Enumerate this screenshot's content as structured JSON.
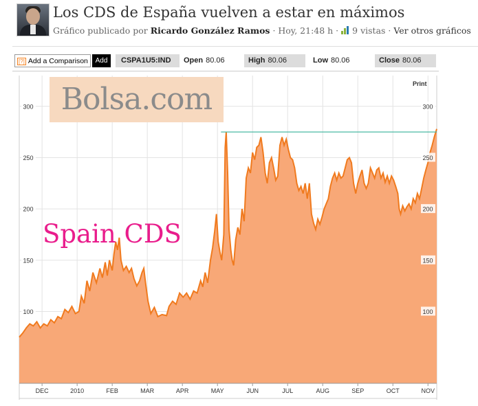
{
  "header": {
    "title": "Los CDS de España vuelven a estar en máximos",
    "meta_prefix": "Gráfico publicado por",
    "author": "Ricardo González Ramos",
    "time": "· Hoy, 21:48 h ·",
    "views": "9 vistas",
    "dot": "·",
    "other_charts": "Ver otros gráficos"
  },
  "toolbar": {
    "compare_icon": "[?]",
    "compare_label": "Add a Comparison",
    "add_label": "Add",
    "ticker": "CSPA1U5:IND",
    "open_label": "Open",
    "open_value": "80.06",
    "high_label": "High",
    "high_value": "80.06",
    "low_label": "Low",
    "low_value": "80.06",
    "close_label": "Close",
    "close_value": "80.06",
    "print_label": "Print"
  },
  "watermark": "Bolsa.com",
  "overlay_label": "Spain CDS",
  "colors": {
    "line": "#f07a1e",
    "fill": "#f8a877",
    "resistance": "#48b9a3",
    "grid": "#e3e3e3",
    "overlay": "#e91d8c"
  },
  "chart_data": {
    "type": "area",
    "title": "",
    "xlabel": "",
    "ylabel": "",
    "ylim": [
      30,
      330
    ],
    "yticks": [
      100,
      150,
      200,
      250,
      300
    ],
    "xticks": [
      {
        "label": "DEC",
        "x": 1.0
      },
      {
        "label": "2010",
        "x": 2.0
      },
      {
        "label": "FEB",
        "x": 3.0
      },
      {
        "label": "MAR",
        "x": 4.0
      },
      {
        "label": "APR",
        "x": 5.0
      },
      {
        "label": "MAY",
        "x": 6.0
      },
      {
        "label": "JUN",
        "x": 7.0
      },
      {
        "label": "JUL",
        "x": 8.0
      },
      {
        "label": "AUG",
        "x": 9.0
      },
      {
        "label": "SEP",
        "x": 10.0
      },
      {
        "label": "OCT",
        "x": 11.0
      },
      {
        "label": "NOV",
        "x": 12.0
      }
    ],
    "xlim": [
      0.35,
      12.25
    ],
    "grid": true,
    "resistance_level": 275,
    "resistance_x": [
      6.1,
      12.25
    ],
    "series": [
      {
        "points": [
          [
            0.35,
            75
          ],
          [
            0.45,
            79
          ],
          [
            0.55,
            84
          ],
          [
            0.65,
            88
          ],
          [
            0.75,
            86
          ],
          [
            0.85,
            90
          ],
          [
            0.95,
            84
          ],
          [
            1.05,
            88
          ],
          [
            1.15,
            86
          ],
          [
            1.25,
            92
          ],
          [
            1.35,
            89
          ],
          [
            1.45,
            95
          ],
          [
            1.55,
            93
          ],
          [
            1.65,
            102
          ],
          [
            1.75,
            99
          ],
          [
            1.85,
            105
          ],
          [
            1.95,
            98
          ],
          [
            2.05,
            100
          ],
          [
            2.12,
            115
          ],
          [
            2.2,
            108
          ],
          [
            2.28,
            130
          ],
          [
            2.36,
            120
          ],
          [
            2.45,
            138
          ],
          [
            2.55,
            128
          ],
          [
            2.65,
            142
          ],
          [
            2.72,
            133
          ],
          [
            2.8,
            148
          ],
          [
            2.86,
            135
          ],
          [
            2.92,
            150
          ],
          [
            3.0,
            140
          ],
          [
            3.05,
            156
          ],
          [
            3.1,
            168
          ],
          [
            3.15,
            160
          ],
          [
            3.2,
            172
          ],
          [
            3.25,
            150
          ],
          [
            3.32,
            140
          ],
          [
            3.4,
            144
          ],
          [
            3.48,
            138
          ],
          [
            3.55,
            142
          ],
          [
            3.62,
            132
          ],
          [
            3.7,
            125
          ],
          [
            3.78,
            130
          ],
          [
            3.85,
            138
          ],
          [
            3.9,
            142
          ],
          [
            3.95,
            128
          ],
          [
            4.02,
            110
          ],
          [
            4.1,
            98
          ],
          [
            4.2,
            104
          ],
          [
            4.3,
            95
          ],
          [
            4.42,
            97
          ],
          [
            4.55,
            96
          ],
          [
            4.62,
            105
          ],
          [
            4.72,
            110
          ],
          [
            4.82,
            107
          ],
          [
            4.92,
            118
          ],
          [
            5.02,
            114
          ],
          [
            5.12,
            118
          ],
          [
            5.22,
            112
          ],
          [
            5.32,
            120
          ],
          [
            5.42,
            118
          ],
          [
            5.52,
            130
          ],
          [
            5.58,
            124
          ],
          [
            5.65,
            138
          ],
          [
            5.72,
            128
          ],
          [
            5.8,
            150
          ],
          [
            5.86,
            162
          ],
          [
            5.92,
            178
          ],
          [
            5.97,
            195
          ],
          [
            6.02,
            168
          ],
          [
            6.07,
            158
          ],
          [
            6.12,
            150
          ],
          [
            6.18,
            175
          ],
          [
            6.22,
            260
          ],
          [
            6.25,
            275
          ],
          [
            6.29,
            235
          ],
          [
            6.33,
            180
          ],
          [
            6.38,
            160
          ],
          [
            6.42,
            150
          ],
          [
            6.46,
            145
          ],
          [
            6.52,
            170
          ],
          [
            6.58,
            182
          ],
          [
            6.64,
            175
          ],
          [
            6.7,
            200
          ],
          [
            6.76,
            188
          ],
          [
            6.82,
            230
          ],
          [
            6.88,
            240
          ],
          [
            6.94,
            235
          ],
          [
            7.0,
            255
          ],
          [
            7.06,
            248
          ],
          [
            7.12,
            260
          ],
          [
            7.18,
            262
          ],
          [
            7.24,
            270
          ],
          [
            7.3,
            255
          ],
          [
            7.36,
            235
          ],
          [
            7.42,
            225
          ],
          [
            7.48,
            245
          ],
          [
            7.54,
            250
          ],
          [
            7.6,
            240
          ],
          [
            7.66,
            228
          ],
          [
            7.72,
            232
          ],
          [
            7.78,
            262
          ],
          [
            7.84,
            270
          ],
          [
            7.9,
            262
          ],
          [
            7.96,
            268
          ],
          [
            8.02,
            258
          ],
          [
            8.08,
            250
          ],
          [
            8.14,
            248
          ],
          [
            8.2,
            240
          ],
          [
            8.26,
            225
          ],
          [
            8.32,
            218
          ],
          [
            8.38,
            222
          ],
          [
            8.44,
            215
          ],
          [
            8.5,
            225
          ],
          [
            8.56,
            210
          ],
          [
            8.62,
            225
          ],
          [
            8.68,
            195
          ],
          [
            8.74,
            186
          ],
          [
            8.8,
            180
          ],
          [
            8.86,
            190
          ],
          [
            8.92,
            185
          ],
          [
            8.98,
            192
          ],
          [
            9.04,
            200
          ],
          [
            9.1,
            205
          ],
          [
            9.16,
            210
          ],
          [
            9.22,
            222
          ],
          [
            9.28,
            230
          ],
          [
            9.34,
            235
          ],
          [
            9.4,
            228
          ],
          [
            9.46,
            235
          ],
          [
            9.52,
            230
          ],
          [
            9.58,
            232
          ],
          [
            9.64,
            240
          ],
          [
            9.7,
            248
          ],
          [
            9.76,
            250
          ],
          [
            9.82,
            245
          ],
          [
            9.88,
            225
          ],
          [
            9.94,
            215
          ],
          [
            10.0,
            225
          ],
          [
            10.06,
            232
          ],
          [
            10.12,
            238
          ],
          [
            10.18,
            225
          ],
          [
            10.24,
            220
          ],
          [
            10.3,
            225
          ],
          [
            10.36,
            240
          ],
          [
            10.42,
            235
          ],
          [
            10.48,
            230
          ],
          [
            10.54,
            238
          ],
          [
            10.6,
            240
          ],
          [
            10.66,
            230
          ],
          [
            10.72,
            235
          ],
          [
            10.78,
            226
          ],
          [
            10.84,
            232
          ],
          [
            10.9,
            225
          ],
          [
            10.96,
            232
          ],
          [
            11.02,
            228
          ],
          [
            11.08,
            222
          ],
          [
            11.14,
            215
          ],
          [
            11.18,
            200
          ],
          [
            11.22,
            195
          ],
          [
            11.28,
            203
          ],
          [
            11.34,
            198
          ],
          [
            11.4,
            202
          ],
          [
            11.46,
            205
          ],
          [
            11.52,
            200
          ],
          [
            11.58,
            210
          ],
          [
            11.64,
            206
          ],
          [
            11.7,
            215
          ],
          [
            11.76,
            210
          ],
          [
            11.82,
            220
          ],
          [
            11.88,
            230
          ],
          [
            11.94,
            238
          ],
          [
            12.0,
            245
          ],
          [
            12.06,
            255
          ],
          [
            12.12,
            262
          ],
          [
            12.18,
            270
          ],
          [
            12.25,
            278
          ]
        ]
      }
    ]
  }
}
